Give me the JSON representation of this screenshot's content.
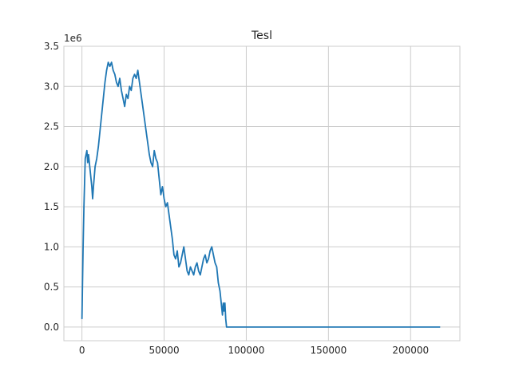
{
  "chart_data": {
    "type": "line",
    "title": "Tesl",
    "xlabel": "",
    "ylabel": "",
    "y_offset_label": "1e6",
    "y_scale_factor": 1000000,
    "xlim": [
      -11000,
      230000
    ],
    "ylim": [
      -0.17,
      3.5
    ],
    "x_ticks": [
      0,
      50000,
      100000,
      150000,
      200000
    ],
    "x_tick_labels": [
      "0",
      "50000",
      "100000",
      "150000",
      "200000"
    ],
    "y_ticks": [
      0.0,
      0.5,
      1.0,
      1.5,
      2.0,
      2.5,
      3.0,
      3.5
    ],
    "y_tick_labels": [
      "0.0",
      "0.5",
      "1.0",
      "1.5",
      "2.0",
      "2.5",
      "3.0",
      "3.5"
    ],
    "grid": true,
    "line_color": "#1f77b4",
    "series": [
      {
        "x": [
          0,
          300,
          700,
          1200,
          2000,
          3000,
          3500,
          4000,
          5000,
          6000,
          6500,
          7000,
          8000,
          9000,
          10000,
          11000,
          12000,
          13000,
          14000,
          15000,
          16000,
          17000,
          18000,
          19000,
          20000,
          21000,
          22000,
          23000,
          24000,
          25000,
          26000,
          27000,
          28000,
          29000,
          30000,
          31000,
          32000,
          33000,
          34000,
          35000,
          36000,
          37000,
          38000,
          39000,
          40000,
          41000,
          42000,
          43000,
          44000,
          45000,
          46000,
          47000,
          48000,
          49000,
          50000,
          51000,
          52000,
          53000,
          54000,
          55000,
          56000,
          57000,
          58000,
          59000,
          60000,
          61000,
          62000,
          63000,
          64000,
          65000,
          66000,
          67000,
          68000,
          69000,
          70000,
          71000,
          72000,
          73000,
          74000,
          75000,
          76000,
          77000,
          78000,
          79000,
          80000,
          81000,
          82000,
          83000,
          84000,
          84500,
          85000,
          85500,
          86000,
          86500,
          87000,
          87500,
          88000,
          100000,
          120000,
          150000,
          180000,
          200000,
          218000
        ],
        "y": [
          0.1,
          0.5,
          1.0,
          1.5,
          2.1,
          2.2,
          2.05,
          2.15,
          1.95,
          1.75,
          1.6,
          1.75,
          2.0,
          2.1,
          2.25,
          2.45,
          2.65,
          2.85,
          3.05,
          3.2,
          3.3,
          3.25,
          3.3,
          3.2,
          3.15,
          3.05,
          3.0,
          3.1,
          2.95,
          2.85,
          2.75,
          2.9,
          2.85,
          3.0,
          2.95,
          3.1,
          3.15,
          3.1,
          3.2,
          3.05,
          2.9,
          2.75,
          2.6,
          2.45,
          2.3,
          2.15,
          2.05,
          2.0,
          2.2,
          2.1,
          2.05,
          1.85,
          1.65,
          1.75,
          1.6,
          1.5,
          1.55,
          1.4,
          1.25,
          1.1,
          0.9,
          0.85,
          0.95,
          0.75,
          0.8,
          0.9,
          1.0,
          0.85,
          0.7,
          0.65,
          0.75,
          0.7,
          0.65,
          0.75,
          0.8,
          0.7,
          0.65,
          0.75,
          0.85,
          0.9,
          0.8,
          0.85,
          0.95,
          1.0,
          0.9,
          0.8,
          0.75,
          0.55,
          0.45,
          0.35,
          0.25,
          0.15,
          0.3,
          0.2,
          0.3,
          0.1,
          0.0,
          0.0,
          0.0,
          0.0,
          0.0,
          0.0,
          0.0
        ]
      }
    ]
  }
}
